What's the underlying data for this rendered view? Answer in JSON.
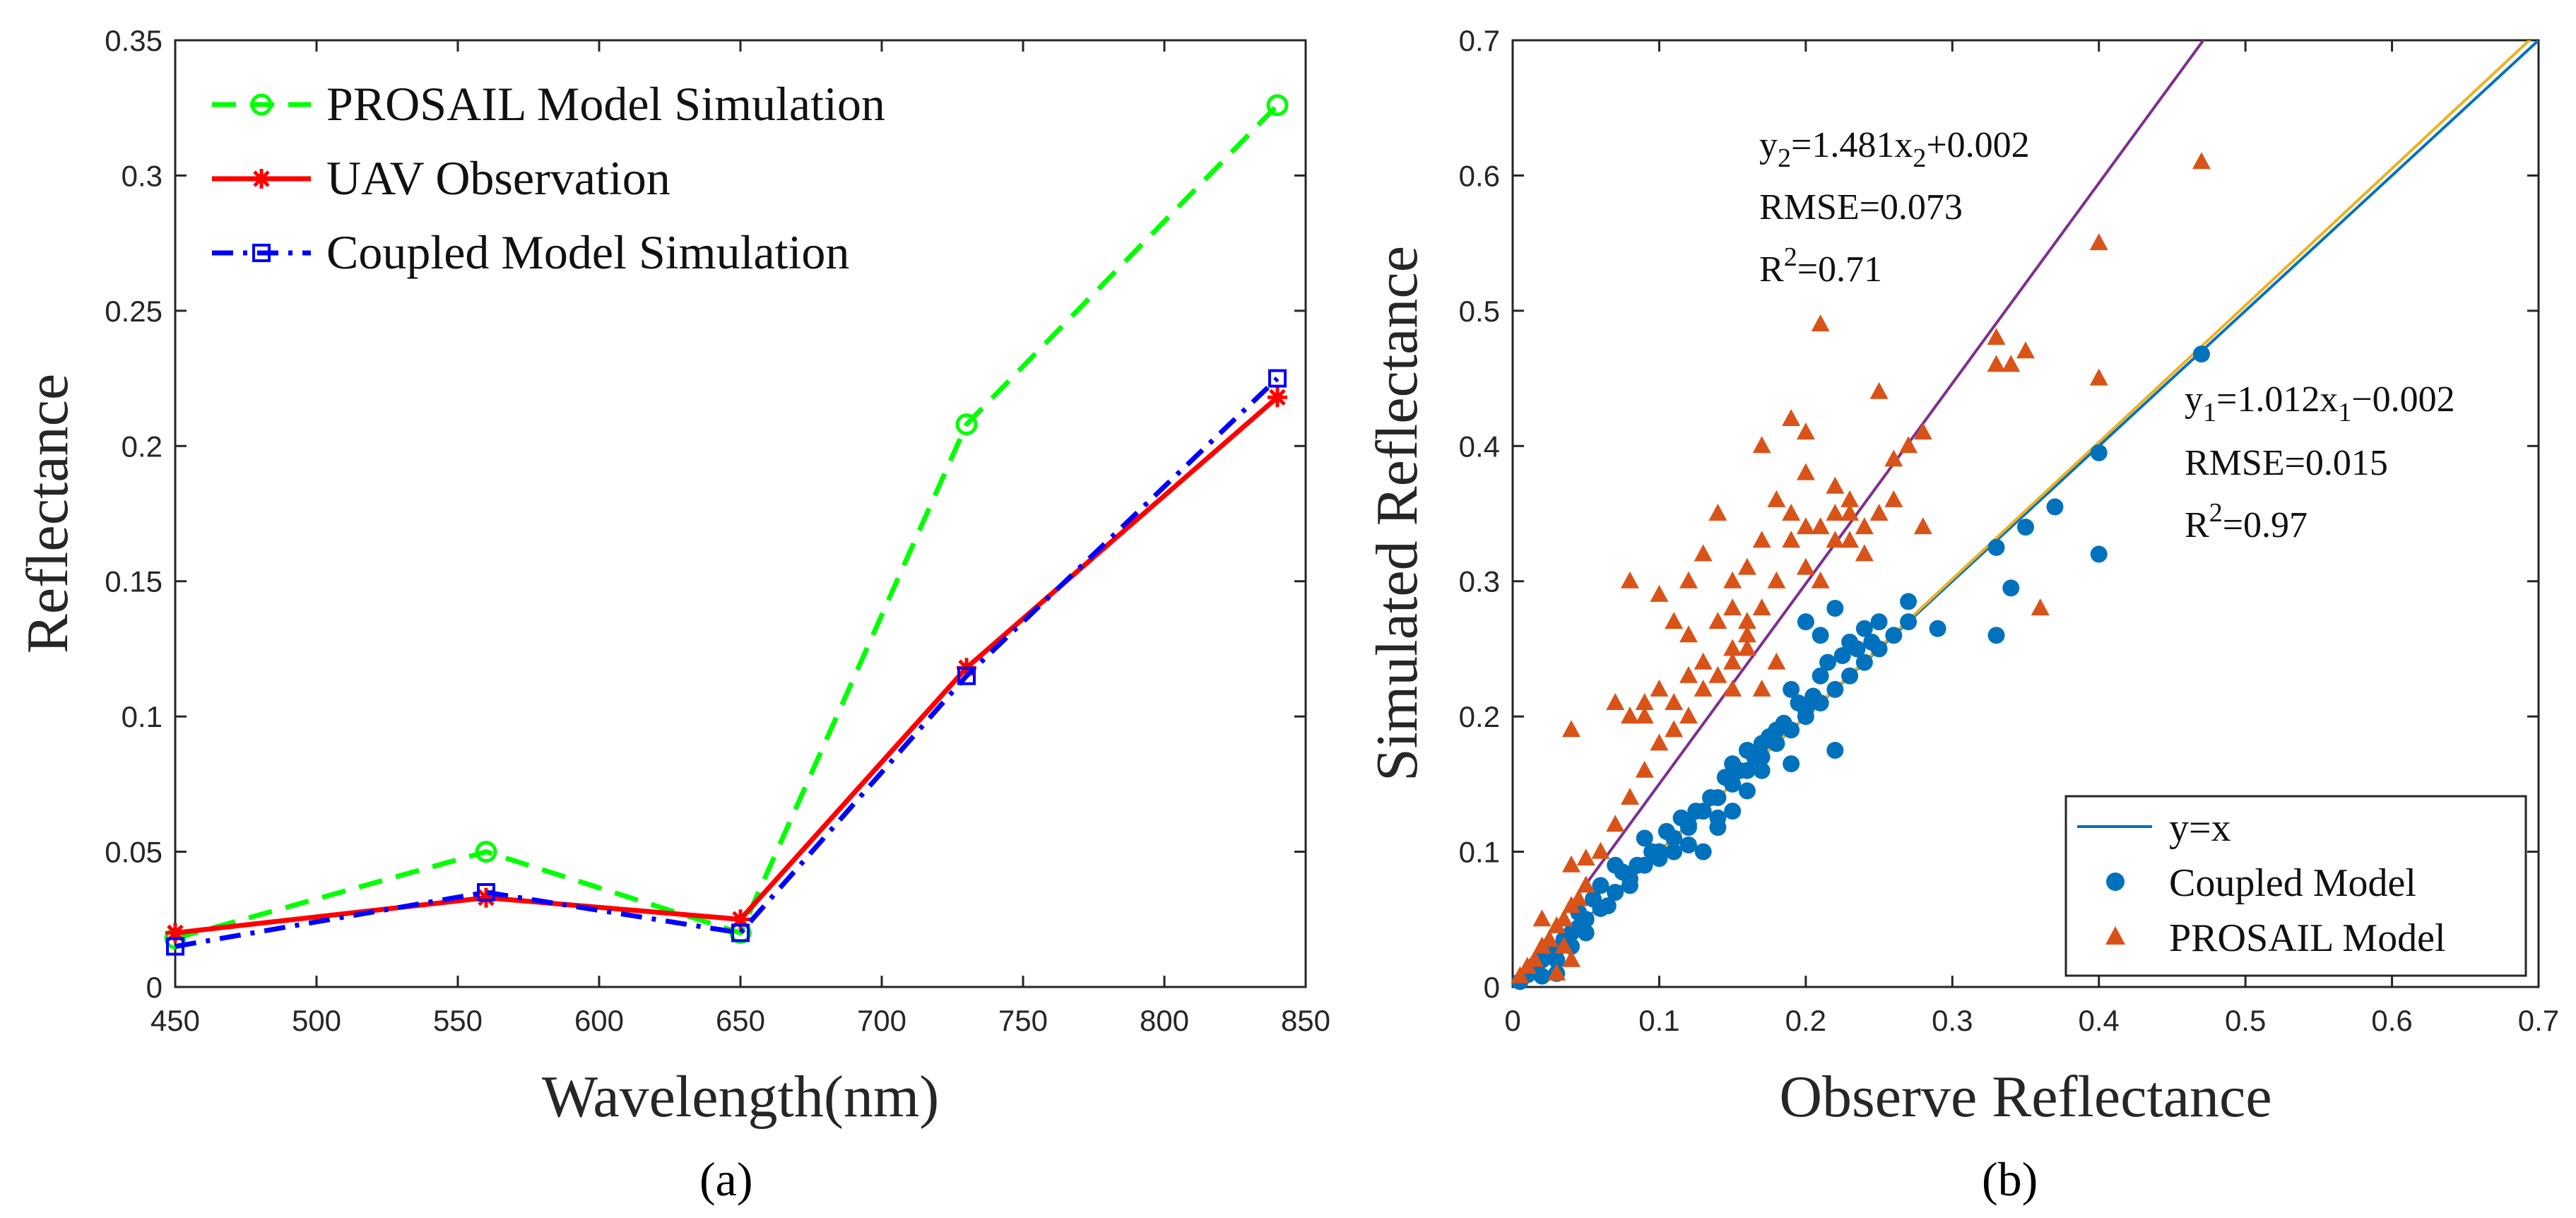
{
  "chart_data": [
    {
      "type": "line",
      "panel_label": "(a)",
      "xlabel": "Wavelength(nm)",
      "ylabel": "Reflectance",
      "xlim": [
        450,
        850
      ],
      "ylim": [
        0,
        0.35
      ],
      "xticks": [
        "450",
        "500",
        "550",
        "600",
        "650",
        "700",
        "750",
        "800",
        "850"
      ],
      "yticks": [
        "0",
        "0.05",
        "0.1",
        "0.15",
        "0.2",
        "0.25",
        "0.3",
        "0.35"
      ],
      "x": [
        450,
        560,
        650,
        730,
        840
      ],
      "series": [
        {
          "name": "PROSAIL Model Simulation",
          "color": "#00ff00",
          "marker": "circle",
          "style": "dashed",
          "values": [
            0.018,
            0.05,
            0.02,
            0.208,
            0.326
          ]
        },
        {
          "name": "UAV Observation",
          "color": "#ff0000",
          "marker": "asterisk",
          "style": "solid",
          "values": [
            0.02,
            0.033,
            0.025,
            0.118,
            0.218
          ]
        },
        {
          "name": "Coupled Model Simulation",
          "color": "#0000ff",
          "marker": "square",
          "style": "dashdot",
          "values": [
            0.015,
            0.035,
            0.02,
            0.115,
            0.225
          ]
        }
      ],
      "legend_position": "top-left"
    },
    {
      "type": "scatter",
      "panel_label": "(b)",
      "xlabel": "Observe Reflectance",
      "ylabel": "Simulated Reflectance",
      "xlim": [
        0,
        0.7
      ],
      "ylim": [
        0,
        0.7
      ],
      "xticks": [
        "0",
        "0.1",
        "0.2",
        "0.3",
        "0.4",
        "0.5",
        "0.6",
        "0.7"
      ],
      "yticks": [
        "0",
        "0.1",
        "0.2",
        "0.3",
        "0.4",
        "0.5",
        "0.6",
        "0.7"
      ],
      "lines": [
        {
          "name": "y=x",
          "slope": 1,
          "intercept": 0,
          "color": "#0072bd"
        },
        {
          "name": "fit-prosail",
          "slope": 1.481,
          "intercept": 0.002,
          "color": "#7e2f8e"
        },
        {
          "name": "fit-coupled",
          "slope": 1.012,
          "intercept": -0.002,
          "color": "#edb120"
        }
      ],
      "series": [
        {
          "name": "Coupled Model",
          "color": "#0072bd",
          "marker": "circle",
          "points": [
            [
              0.005,
              0.004
            ],
            [
              0.01,
              0.009
            ],
            [
              0.015,
              0.013
            ],
            [
              0.02,
              0.02
            ],
            [
              0.025,
              0.024
            ],
            [
              0.03,
              0.028
            ],
            [
              0.035,
              0.035
            ],
            [
              0.04,
              0.04
            ],
            [
              0.045,
              0.044
            ],
            [
              0.05,
              0.05
            ],
            [
              0.06,
              0.058
            ],
            [
              0.07,
              0.07
            ],
            [
              0.08,
              0.08
            ],
            [
              0.09,
              0.09
            ],
            [
              0.1,
              0.1
            ],
            [
              0.11,
              0.11
            ],
            [
              0.12,
              0.12
            ],
            [
              0.13,
              0.13
            ],
            [
              0.14,
              0.14
            ],
            [
              0.15,
              0.15
            ],
            [
              0.16,
              0.16
            ],
            [
              0.17,
              0.17
            ],
            [
              0.18,
              0.18
            ],
            [
              0.19,
              0.19
            ],
            [
              0.2,
              0.2
            ],
            [
              0.21,
              0.21
            ],
            [
              0.22,
              0.22
            ],
            [
              0.23,
              0.23
            ],
            [
              0.24,
              0.24
            ],
            [
              0.25,
              0.25
            ],
            [
              0.26,
              0.26
            ],
            [
              0.27,
              0.27
            ],
            [
              0.08,
              0.075
            ],
            [
              0.1,
              0.095
            ],
            [
              0.12,
              0.105
            ],
            [
              0.14,
              0.125
            ],
            [
              0.15,
              0.13
            ],
            [
              0.16,
              0.145
            ],
            [
              0.13,
              0.1
            ],
            [
              0.14,
              0.118
            ],
            [
              0.17,
              0.16
            ],
            [
              0.18,
              0.19
            ],
            [
              0.2,
              0.27
            ],
            [
              0.21,
              0.26
            ],
            [
              0.22,
              0.28
            ],
            [
              0.23,
              0.255
            ],
            [
              0.24,
              0.265
            ],
            [
              0.19,
              0.165
            ],
            [
              0.22,
              0.175
            ],
            [
              0.2,
              0.205
            ],
            [
              0.25,
              0.27
            ],
            [
              0.27,
              0.285
            ],
            [
              0.29,
              0.265
            ],
            [
              0.33,
              0.26
            ],
            [
              0.33,
              0.325
            ],
            [
              0.34,
              0.295
            ],
            [
              0.35,
              0.34
            ],
            [
              0.37,
              0.355
            ],
            [
              0.4,
              0.32
            ],
            [
              0.4,
              0.395
            ],
            [
              0.47,
              0.468
            ],
            [
              0.06,
              0.075
            ],
            [
              0.07,
              0.09
            ],
            [
              0.09,
              0.11
            ],
            [
              0.11,
              0.1
            ],
            [
              0.12,
              0.118
            ],
            [
              0.15,
              0.165
            ],
            [
              0.16,
              0.175
            ],
            [
              0.17,
              0.18
            ],
            [
              0.19,
              0.22
            ],
            [
              0.21,
              0.23
            ],
            [
              0.03,
              0.02
            ],
            [
              0.04,
              0.03
            ],
            [
              0.05,
              0.04
            ],
            [
              0.02,
              0.008
            ],
            [
              0.03,
              0.01
            ],
            [
              0.045,
              0.055
            ],
            [
              0.055,
              0.065
            ],
            [
              0.065,
              0.06
            ],
            [
              0.075,
              0.085
            ],
            [
              0.085,
              0.09
            ],
            [
              0.095,
              0.1
            ],
            [
              0.105,
              0.115
            ],
            [
              0.115,
              0.125
            ],
            [
              0.125,
              0.13
            ],
            [
              0.135,
              0.14
            ],
            [
              0.145,
              0.155
            ],
            [
              0.155,
              0.16
            ],
            [
              0.165,
              0.17
            ],
            [
              0.175,
              0.185
            ],
            [
              0.185,
              0.195
            ],
            [
              0.195,
              0.21
            ],
            [
              0.205,
              0.215
            ],
            [
              0.215,
              0.24
            ],
            [
              0.225,
              0.245
            ],
            [
              0.235,
              0.25
            ],
            [
              0.245,
              0.255
            ]
          ]
        },
        {
          "name": "PROSAIL Model",
          "color": "#d95319",
          "marker": "triangle",
          "points": [
            [
              0.005,
              0.008
            ],
            [
              0.01,
              0.015
            ],
            [
              0.015,
              0.02
            ],
            [
              0.02,
              0.03
            ],
            [
              0.025,
              0.035
            ],
            [
              0.03,
              0.045
            ],
            [
              0.035,
              0.05
            ],
            [
              0.04,
              0.06
            ],
            [
              0.045,
              0.065
            ],
            [
              0.05,
              0.075
            ],
            [
              0.03,
              0.01
            ],
            [
              0.04,
              0.02
            ],
            [
              0.035,
              0.03
            ],
            [
              0.02,
              0.05
            ],
            [
              0.04,
              0.09
            ],
            [
              0.05,
              0.095
            ],
            [
              0.04,
              0.19
            ],
            [
              0.07,
              0.21
            ],
            [
              0.08,
              0.2
            ],
            [
              0.09,
              0.21
            ],
            [
              0.08,
              0.3
            ],
            [
              0.09,
              0.2
            ],
            [
              0.1,
              0.22
            ],
            [
              0.1,
              0.29
            ],
            [
              0.11,
              0.27
            ],
            [
              0.11,
              0.21
            ],
            [
              0.12,
              0.23
            ],
            [
              0.12,
              0.26
            ],
            [
              0.12,
              0.3
            ],
            [
              0.13,
              0.24
            ],
            [
              0.13,
              0.32
            ],
            [
              0.14,
              0.27
            ],
            [
              0.14,
              0.35
            ],
            [
              0.15,
              0.25
            ],
            [
              0.15,
              0.28
            ],
            [
              0.15,
              0.3
            ],
            [
              0.16,
              0.26
            ],
            [
              0.16,
              0.31
            ],
            [
              0.17,
              0.33
            ],
            [
              0.17,
              0.4
            ],
            [
              0.18,
              0.24
            ],
            [
              0.18,
              0.36
            ],
            [
              0.19,
              0.35
            ],
            [
              0.19,
              0.42
            ],
            [
              0.2,
              0.38
            ],
            [
              0.2,
              0.41
            ],
            [
              0.21,
              0.34
            ],
            [
              0.21,
              0.49
            ],
            [
              0.22,
              0.35
            ],
            [
              0.22,
              0.33
            ],
            [
              0.23,
              0.36
            ],
            [
              0.24,
              0.32
            ],
            [
              0.25,
              0.44
            ],
            [
              0.25,
              0.35
            ],
            [
              0.26,
              0.36
            ],
            [
              0.26,
              0.39
            ],
            [
              0.27,
              0.4
            ],
            [
              0.28,
              0.34
            ],
            [
              0.28,
              0.41
            ],
            [
              0.33,
              0.48
            ],
            [
              0.33,
              0.46
            ],
            [
              0.34,
              0.46
            ],
            [
              0.35,
              0.47
            ],
            [
              0.36,
              0.28
            ],
            [
              0.4,
              0.45
            ],
            [
              0.4,
              0.55
            ],
            [
              0.47,
              0.61
            ],
            [
              0.1,
              0.18
            ],
            [
              0.11,
              0.19
            ],
            [
              0.12,
              0.2
            ],
            [
              0.13,
              0.22
            ],
            [
              0.14,
              0.23
            ],
            [
              0.15,
              0.24
            ],
            [
              0.16,
              0.27
            ],
            [
              0.17,
              0.28
            ],
            [
              0.19,
              0.33
            ],
            [
              0.2,
              0.34
            ],
            [
              0.22,
              0.37
            ],
            [
              0.23,
              0.35
            ],
            [
              0.24,
              0.34
            ],
            [
              0.06,
              0.1
            ],
            [
              0.07,
              0.12
            ],
            [
              0.08,
              0.14
            ],
            [
              0.09,
              0.16
            ],
            [
              0.15,
              0.22
            ],
            [
              0.16,
              0.25
            ],
            [
              0.17,
              0.22
            ],
            [
              0.18,
              0.3
            ],
            [
              0.2,
              0.31
            ],
            [
              0.21,
              0.3
            ],
            [
              0.23,
              0.33
            ]
          ]
        }
      ],
      "annotations": [
        {
          "base": "y",
          "sub": "2",
          "rest": "=1.481x",
          "sub2": "2",
          "tail": "+0.002"
        },
        {
          "text": "RMSE=0.073"
        },
        {
          "base": "R",
          "sup": "2",
          "tail": "=0.71"
        },
        {
          "base": "y",
          "sub": "1",
          "rest": "=1.012x",
          "sub2": "1",
          "tail": "−0.002"
        },
        {
          "text": "RMSE=0.015"
        },
        {
          "base": "R",
          "sup": "2",
          "tail": "=0.97"
        }
      ],
      "legend_entries": [
        "y=x",
        "Coupled Model",
        "PROSAIL Model"
      ],
      "legend_position": "bottom-right"
    }
  ]
}
